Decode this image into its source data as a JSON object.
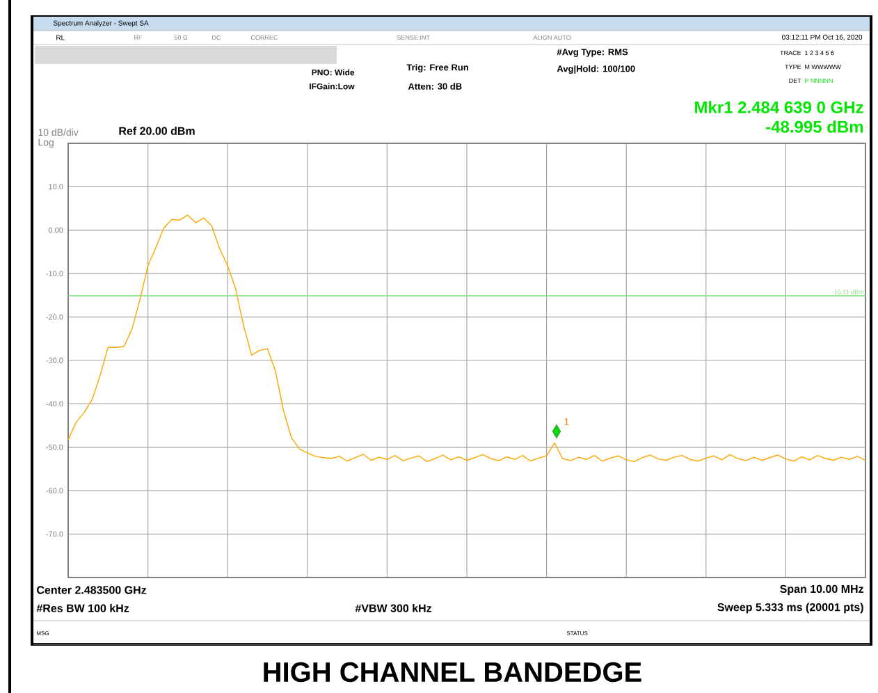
{
  "chart_data": {
    "type": "line",
    "title": "HIGH CHANNEL BANDEDGE",
    "annotations": [
      "Spectrum Analyzer - Swept SA",
      "RL",
      "RF",
      "50 Ω",
      "DC",
      "CORREC",
      "SENSE:INT",
      "ALIGN AUTO",
      "03:12:11 PM Oct 16, 2020",
      "PNO: Wide",
      "IFGain:Low",
      "Trig: Free Run",
      "Atten: 30 dB",
      "#Avg Type: RMS",
      "Avg|Hold: 100/100",
      "TRACE",
      "1 2 3 4 5 6",
      "TYPE",
      "M WWWWW",
      "DET",
      "P NNNNN",
      "Mkr1 2.484 639 0 GHz",
      "-48.995 dBm",
      "10 dB/div",
      "Log",
      "Ref 20.00 dBm",
      "Center 2.483500 GHz",
      "Span 10.00 MHz",
      "#Res BW 100 kHz",
      "#VBW 300 kHz",
      "Sweep  5.333 ms (20001 pts)",
      "MSG",
      "STATUS",
      "1"
    ],
    "categories": [
      null,
      null,
      null,
      null,
      null,
      null,
      null,
      null,
      null,
      null,
      null,
      null,
      null,
      null,
      null,
      null,
      null,
      null,
      null,
      null,
      null,
      null,
      null,
      null,
      null,
      null,
      null,
      null,
      null,
      null,
      null,
      null,
      null,
      null,
      null,
      null,
      null,
      null,
      null,
      null,
      null,
      null,
      null,
      null,
      null,
      null,
      null,
      null,
      null,
      null,
      null,
      null,
      null,
      null,
      null,
      null,
      null,
      null,
      null,
      null,
      null,
      null,
      null,
      null,
      null,
      null,
      null,
      null,
      null,
      null,
      null,
      null,
      null,
      null,
      null,
      null,
      null,
      null,
      null,
      null,
      null,
      null,
      null,
      null,
      null,
      null,
      null,
      null,
      null,
      null,
      null,
      null,
      null,
      null,
      null,
      null,
      null,
      null,
      null,
      null,
      null
    ],
    "series": [
      {
        "color": "#ffa500",
        "values": [
          -48.3,
          -44.2,
          -42,
          -39,
          -33.5,
          -27,
          -27,
          -26.8,
          -22.8,
          -16,
          -8.2,
          -4,
          0.5,
          2.5,
          2.3,
          3.5,
          1.7,
          2.8,
          1.0,
          -4.3,
          -8.2,
          -13.5,
          -22,
          -28.8,
          -27.7,
          -27.3,
          -32.5,
          -41.5,
          -47.8,
          -50.4,
          -51.3,
          -52.1,
          -52.4,
          -52.6,
          -52.1,
          -53.2,
          -52.4,
          -51.6,
          -53.0,
          -52.3,
          -52.8,
          -51.9,
          -53.1,
          -52.5,
          -52.0,
          -53.3,
          -52.6,
          -51.8,
          -52.9,
          -52.2,
          -53.0,
          -52.4,
          -51.7,
          -52.6,
          -53.1,
          -52.2,
          -52.8,
          -51.9,
          -53.2,
          -52.5,
          -52.0,
          -49.0,
          -52.6,
          -53.1,
          -52.3,
          -52.8,
          -51.9,
          -53.2,
          -52.5,
          -52.0,
          -52.9,
          -53.3,
          -52.4,
          -51.8,
          -52.7,
          -53.0,
          -52.3,
          -51.9,
          -52.8,
          -53.2,
          -52.5,
          -52.0,
          -52.9,
          -51.7,
          -52.6,
          -53.1,
          -52.3,
          -53.0,
          -52.4,
          -51.8,
          -52.7,
          -53.2,
          -52.2,
          -52.9,
          -51.9,
          -52.6,
          -53.0,
          -52.3,
          -52.8,
          -52.1,
          -53.0
        ]
      }
    ],
    "ylim": [
      -80,
      20
    ],
    "yticks": [
      {
        "value": 10,
        "label": "10.0"
      },
      {
        "value": 0,
        "label": "0.00"
      },
      {
        "value": -10,
        "label": "-10.0"
      },
      {
        "value": -20,
        "label": "-20.0"
      },
      {
        "value": -30,
        "label": "-30.0"
      },
      {
        "value": -40,
        "label": "-40.0"
      },
      {
        "value": -50,
        "label": "-50.0"
      },
      {
        "value": -60,
        "label": "-60.0"
      },
      {
        "value": -70,
        "label": "-70.0"
      }
    ],
    "ref_lines": [
      {
        "axis": "y",
        "value": -15.11,
        "label": "-15.11 dBm",
        "color": "#80e080"
      }
    ],
    "grid": true,
    "tick_labels": "y",
    "marker": "none",
    "line_style": "solid"
  }
}
